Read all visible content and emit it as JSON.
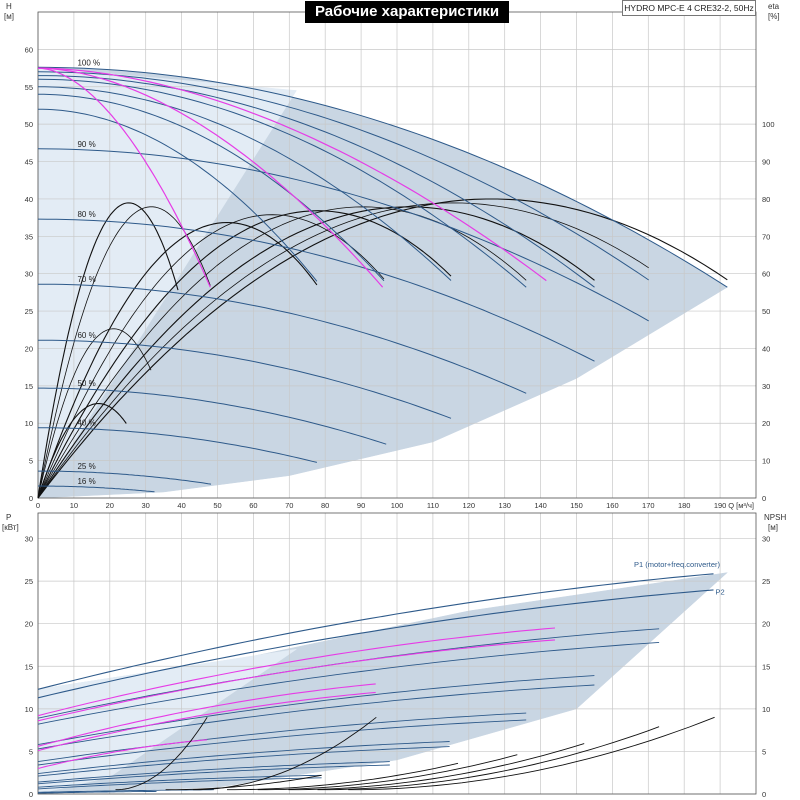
{
  "title": "Рабочие характеристики",
  "model": "HYDRO MPC-E 4 CRE32-2, 50Hz",
  "colors": {
    "grid": "#c8c8c8",
    "envelope": "#c9d6e3",
    "envelope_light": "#e3ecf5",
    "blue": "#2e5a8a",
    "magenta": "#e63ce6",
    "black": "#111111"
  },
  "chart_data": [
    {
      "type": "line",
      "name": "head-curves",
      "ylabel": "H",
      "yunit": "[м]",
      "ylabel_right": "eta",
      "yunit_right": "[%]",
      "xlabel": "Q [м³/ч]",
      "xlim": [
        0,
        200
      ],
      "ylim": [
        0,
        65
      ],
      "xticks": [
        0,
        10,
        20,
        30,
        40,
        50,
        60,
        70,
        80,
        90,
        100,
        110,
        120,
        130,
        140,
        150,
        160,
        170,
        180,
        190
      ],
      "yticks": [
        0,
        5,
        10,
        15,
        20,
        25,
        30,
        35,
        40,
        45,
        50,
        55,
        60
      ],
      "eta_ticks": [
        0,
        10,
        20,
        30,
        40,
        50,
        60,
        70,
        80,
        90,
        100
      ],
      "eta_range": [
        0,
        130
      ],
      "speed_labels": [
        {
          "text": "100 %",
          "x": 11,
          "y": 57.6
        },
        {
          "text": "90 %",
          "x": 11,
          "y": 46.7
        },
        {
          "text": "80 %",
          "x": 11,
          "y": 37.3
        },
        {
          "text": "70 %",
          "x": 11,
          "y": 28.6
        },
        {
          "text": "60 %",
          "x": 11,
          "y": 21.1
        },
        {
          "text": "50 %",
          "x": 11,
          "y": 14.7
        },
        {
          "text": "40 %",
          "x": 11,
          "y": 9.4
        },
        {
          "text": "25 %",
          "x": 11,
          "y": 3.6
        },
        {
          "text": "16 %",
          "x": 11,
          "y": 1.6
        }
      ],
      "blue_curves": [
        {
          "h0": 57.6,
          "qmax": 192,
          "hend": 28.2
        },
        {
          "h0": 57.0,
          "qmax": 173,
          "hend": 28.2
        },
        {
          "h0": 56.5,
          "qmax": 155,
          "hend": 28.2
        },
        {
          "h0": 56.0,
          "qmax": 136,
          "hend": 28.2
        },
        {
          "h0": 55.0,
          "qmax": 117,
          "hend": 28.2
        },
        {
          "h0": 54.0,
          "qmax": 98,
          "hend": 28.2
        },
        {
          "h0": 52.0,
          "qmax": 79,
          "hend": 28.2
        },
        {
          "h0": 46.7,
          "qmax": 173,
          "hend": 22.9
        },
        {
          "h0": 37.3,
          "qmax": 155,
          "hend": 18.3
        },
        {
          "h0": 28.6,
          "qmax": 136,
          "hend": 14.0
        },
        {
          "h0": 21.1,
          "qmax": 117,
          "hend": 10.3
        },
        {
          "h0": 14.7,
          "qmax": 97,
          "hend": 7.2
        },
        {
          "h0": 9.4,
          "qmax": 79,
          "hend": 4.6
        },
        {
          "h0": 3.6,
          "qmax": 49,
          "hend": 1.8
        },
        {
          "h0": 1.6,
          "qmax": 33,
          "hend": 0.8
        }
      ],
      "magenta_curves": [
        {
          "h0": 57.5,
          "qmax": 144,
          "hend": 28.2
        },
        {
          "h0": 57.5,
          "qmax": 96,
          "hend": 28.2
        },
        {
          "h0": 57.5,
          "qmax": 48,
          "hend": 28.2
        }
      ],
      "efficiency_curves": [
        {
          "qmax": 192,
          "peak": 76,
          "at": 120
        },
        {
          "qmax": 173,
          "peak": 75,
          "at": 110
        },
        {
          "qmax": 155,
          "peak": 74,
          "at": 98
        },
        {
          "qmax": 136,
          "peak": 74,
          "at": 86
        },
        {
          "qmax": 117,
          "peak": 73,
          "at": 74
        },
        {
          "qmax": 98,
          "peak": 72,
          "at": 62
        },
        {
          "qmax": 79,
          "peak": 70,
          "at": 50
        },
        {
          "qmax": 48,
          "peak": 74,
          "at": 30
        },
        {
          "qmax": 39,
          "peak": 75,
          "at": 24
        },
        {
          "qmax": 32,
          "peak": 43,
          "at": 20
        },
        {
          "qmax": 25,
          "peak": 24,
          "at": 16
        }
      ],
      "system_curve": [
        [
          0,
          0
        ],
        [
          20,
          0.6
        ],
        [
          40,
          2.3
        ],
        [
          60,
          5.2
        ],
        [
          80,
          9.3
        ],
        [
          100,
          14.5
        ],
        [
          120,
          20.9
        ],
        [
          140,
          28.4
        ]
      ]
    },
    {
      "type": "line",
      "name": "power-curves",
      "ylabel": "P",
      "yunit": "[кВт]",
      "ylabel_right": "NPSH",
      "yunit_right": "[м]",
      "xlim": [
        0,
        200
      ],
      "ylim": [
        0,
        33
      ],
      "yticks": [
        0,
        5,
        10,
        15,
        20,
        25,
        30
      ],
      "series": [
        {
          "name": "P1 (motor+freq.converter)",
          "p0": 12.3,
          "qmax": 192,
          "pend": 26.0
        },
        {
          "name": "P2",
          "p0": 11.3,
          "qmax": 192,
          "pend": 24.1
        }
      ],
      "series_labels": [
        {
          "text": "P1 (motor+freq.converter)",
          "x": 178,
          "y": 26.4
        },
        {
          "text": "P2",
          "x": 190,
          "y": 23.2
        }
      ],
      "blue_curves": [
        {
          "p0": 8.9,
          "qmax": 173,
          "pend": 19.4
        },
        {
          "p0": 8.2,
          "qmax": 173,
          "pend": 17.8
        },
        {
          "p0": 5.8,
          "qmax": 155,
          "pend": 13.9
        },
        {
          "p0": 5.3,
          "qmax": 155,
          "pend": 12.8
        },
        {
          "p0": 3.8,
          "qmax": 136,
          "pend": 9.5
        },
        {
          "p0": 3.4,
          "qmax": 136,
          "pend": 8.7
        },
        {
          "p0": 2.4,
          "qmax": 117,
          "pend": 6.2
        },
        {
          "p0": 2.1,
          "qmax": 117,
          "pend": 5.6
        },
        {
          "p0": 1.4,
          "qmax": 98,
          "pend": 3.8
        },
        {
          "p0": 1.2,
          "qmax": 98,
          "pend": 3.4
        },
        {
          "p0": 0.8,
          "qmax": 79,
          "pend": 2.2
        },
        {
          "p0": 0.6,
          "qmax": 79,
          "pend": 1.9
        },
        {
          "p0": 0.2,
          "qmax": 49,
          "pend": 0.5
        },
        {
          "p0": 0.1,
          "qmax": 33,
          "pend": 0.3
        }
      ],
      "magenta_curves": [
        {
          "p0": 9.2,
          "qmax": 144,
          "pend": 19.5
        },
        {
          "p0": 8.6,
          "qmax": 144,
          "pend": 18.1
        },
        {
          "p0": 5.6,
          "qmax": 96,
          "pend": 13.0
        },
        {
          "p0": 5.1,
          "qmax": 96,
          "pend": 12.0
        },
        {
          "p0": 3.0,
          "qmax": 48,
          "pend": 6.4
        }
      ],
      "npsh_curves": [
        {
          "qmax": 192,
          "end": 9.6
        },
        {
          "qmax": 173,
          "end": 7.9
        },
        {
          "qmax": 155,
          "end": 6.3
        },
        {
          "qmax": 136,
          "end": 4.9
        },
        {
          "qmax": 117,
          "end": 3.6
        },
        {
          "qmax": 96,
          "end": 9.6
        },
        {
          "qmax": 48,
          "end": 9.6
        },
        {
          "qmax": 79,
          "end": 2.2
        }
      ]
    }
  ]
}
